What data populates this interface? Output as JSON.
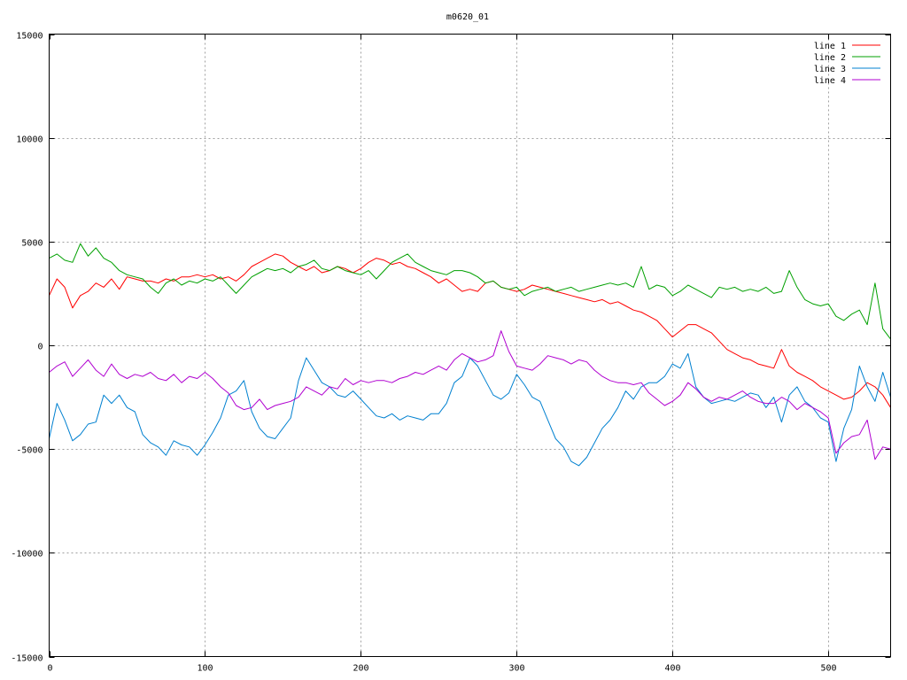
{
  "chart_data": {
    "type": "line",
    "title": "m0620_01",
    "xlabel": "",
    "ylabel": "",
    "xlim": [
      0,
      540
    ],
    "ylim": [
      -15000,
      15000
    ],
    "x_ticks": [
      "0",
      "100",
      "200",
      "300",
      "400",
      "500"
    ],
    "y_ticks": [
      "-15000",
      "-10000",
      "-5000",
      "0",
      "5000",
      "10000",
      "15000"
    ],
    "grid": true,
    "legend_position": "top-right",
    "series": [
      {
        "name": "line 1",
        "color": "#ff0000",
        "x": [
          0,
          5,
          10,
          15,
          20,
          25,
          30,
          35,
          40,
          45,
          50,
          55,
          60,
          65,
          70,
          75,
          80,
          85,
          90,
          95,
          100,
          105,
          110,
          115,
          120,
          125,
          130,
          135,
          140,
          145,
          150,
          155,
          160,
          165,
          170,
          175,
          180,
          185,
          190,
          195,
          200,
          205,
          210,
          215,
          220,
          225,
          230,
          235,
          240,
          245,
          250,
          255,
          260,
          265,
          270,
          275,
          280,
          285,
          290,
          295,
          300,
          305,
          310,
          315,
          320,
          325,
          330,
          335,
          340,
          345,
          350,
          355,
          360,
          365,
          370,
          375,
          380,
          385,
          390,
          395,
          400,
          405,
          410,
          415,
          420,
          425,
          430,
          435,
          440,
          445,
          450,
          455,
          460,
          465,
          470,
          475,
          480,
          485,
          490,
          495,
          500,
          505,
          510,
          515,
          520,
          525,
          530,
          535,
          540
        ],
        "y": [
          2400,
          3200,
          2800,
          1800,
          2400,
          2600,
          3000,
          2800,
          3200,
          2700,
          3300,
          3200,
          3100,
          3100,
          3000,
          3200,
          3100,
          3300,
          3300,
          3400,
          3300,
          3400,
          3200,
          3300,
          3100,
          3400,
          3800,
          4000,
          4200,
          4400,
          4300,
          4000,
          3800,
          3600,
          3800,
          3500,
          3600,
          3800,
          3700,
          3500,
          3700,
          4000,
          4200,
          4100,
          3900,
          4000,
          3800,
          3700,
          3500,
          3300,
          3000,
          3200,
          2900,
          2600,
          2700,
          2600,
          3000,
          3100,
          2800,
          2700,
          2600,
          2700,
          2900,
          2800,
          2700,
          2600,
          2500,
          2400,
          2300,
          2200,
          2100,
          2200,
          2000,
          2100,
          1900,
          1700,
          1600,
          1400,
          1200,
          800,
          400,
          700,
          1000,
          1000,
          800,
          600,
          200,
          -200,
          -400,
          -600,
          -700,
          -900,
          -1000,
          -1100,
          -200,
          -1000,
          -1300,
          -1500,
          -1700,
          -2000,
          -2200,
          -2400,
          -2600,
          -2500,
          -2200,
          -1800,
          -2000,
          -2400,
          -3000
        ]
      },
      {
        "name": "line 2",
        "color": "#00a000",
        "x": [
          0,
          5,
          10,
          15,
          20,
          25,
          30,
          35,
          40,
          45,
          50,
          55,
          60,
          65,
          70,
          75,
          80,
          85,
          90,
          95,
          100,
          105,
          110,
          115,
          120,
          125,
          130,
          135,
          140,
          145,
          150,
          155,
          160,
          165,
          170,
          175,
          180,
          185,
          190,
          195,
          200,
          205,
          210,
          215,
          220,
          225,
          230,
          235,
          240,
          245,
          250,
          255,
          260,
          265,
          270,
          275,
          280,
          285,
          290,
          295,
          300,
          305,
          310,
          315,
          320,
          325,
          330,
          335,
          340,
          345,
          350,
          355,
          360,
          365,
          370,
          375,
          380,
          385,
          390,
          395,
          400,
          405,
          410,
          415,
          420,
          425,
          430,
          435,
          440,
          445,
          450,
          455,
          460,
          465,
          470,
          475,
          480,
          485,
          490,
          495,
          500,
          505,
          510,
          515,
          520,
          525,
          530,
          535,
          540
        ],
        "y": [
          4200,
          4400,
          4100,
          4000,
          4900,
          4300,
          4700,
          4200,
          4000,
          3600,
          3400,
          3300,
          3200,
          2800,
          2500,
          3000,
          3200,
          2900,
          3100,
          3000,
          3200,
          3100,
          3300,
          2900,
          2500,
          2900,
          3300,
          3500,
          3700,
          3600,
          3700,
          3500,
          3800,
          3900,
          4100,
          3700,
          3600,
          3800,
          3600,
          3500,
          3400,
          3600,
          3200,
          3600,
          4000,
          4200,
          4400,
          4000,
          3800,
          3600,
          3500,
          3400,
          3600,
          3600,
          3500,
          3300,
          3000,
          3100,
          2800,
          2700,
          2800,
          2400,
          2600,
          2700,
          2800,
          2600,
          2700,
          2800,
          2600,
          2700,
          2800,
          2900,
          3000,
          2900,
          3000,
          2800,
          3800,
          2700,
          2900,
          2800,
          2400,
          2600,
          2900,
          2700,
          2500,
          2300,
          2800,
          2700,
          2800,
          2600,
          2700,
          2600,
          2800,
          2500,
          2600,
          3600,
          2800,
          2200,
          2000,
          1900,
          2000,
          1400,
          1200,
          1500,
          1700,
          1000,
          3000,
          800,
          300
        ]
      },
      {
        "name": "line 3",
        "color": "#0080d0",
        "x": [
          0,
          5,
          10,
          15,
          20,
          25,
          30,
          35,
          40,
          45,
          50,
          55,
          60,
          65,
          70,
          75,
          80,
          85,
          90,
          95,
          100,
          105,
          110,
          115,
          120,
          125,
          130,
          135,
          140,
          145,
          150,
          155,
          160,
          165,
          170,
          175,
          180,
          185,
          190,
          195,
          200,
          205,
          210,
          215,
          220,
          225,
          230,
          235,
          240,
          245,
          250,
          255,
          260,
          265,
          270,
          275,
          280,
          285,
          290,
          295,
          300,
          305,
          310,
          315,
          320,
          325,
          330,
          335,
          340,
          345,
          350,
          355,
          360,
          365,
          370,
          375,
          380,
          385,
          390,
          395,
          400,
          405,
          410,
          415,
          420,
          425,
          430,
          435,
          440,
          445,
          450,
          455,
          460,
          465,
          470,
          475,
          480,
          485,
          490,
          495,
          500,
          505,
          510,
          515,
          520,
          525,
          530,
          535,
          540
        ],
        "y": [
          -4500,
          -2800,
          -3600,
          -4600,
          -4300,
          -3800,
          -3700,
          -2400,
          -2800,
          -2400,
          -3000,
          -3200,
          -4300,
          -4700,
          -4900,
          -5300,
          -4600,
          -4800,
          -4900,
          -5300,
          -4800,
          -4200,
          -3500,
          -2400,
          -2200,
          -1700,
          -3200,
          -4000,
          -4400,
          -4500,
          -4000,
          -3500,
          -1700,
          -600,
          -1200,
          -1800,
          -2000,
          -2400,
          -2500,
          -2200,
          -2600,
          -3000,
          -3400,
          -3500,
          -3300,
          -3600,
          -3400,
          -3500,
          -3600,
          -3300,
          -3300,
          -2800,
          -1800,
          -1500,
          -600,
          -1000,
          -1700,
          -2400,
          -2600,
          -2300,
          -1400,
          -1900,
          -2500,
          -2700,
          -3600,
          -4500,
          -4900,
          -5600,
          -5800,
          -5400,
          -4700,
          -4000,
          -3600,
          -3000,
          -2200,
          -2600,
          -2000,
          -1800,
          -1800,
          -1500,
          -900,
          -1100,
          -400,
          -2000,
          -2500,
          -2800,
          -2700,
          -2600,
          -2700,
          -2500,
          -2300,
          -2400,
          -3000,
          -2500,
          -3700,
          -2400,
          -2000,
          -2700,
          -3000,
          -3500,
          -3700,
          -5600,
          -4000,
          -3100,
          -1000,
          -2000,
          -2700,
          -1300,
          -2500
        ]
      },
      {
        "name": "line 4",
        "color": "#b000d0",
        "x": [
          0,
          5,
          10,
          15,
          20,
          25,
          30,
          35,
          40,
          45,
          50,
          55,
          60,
          65,
          70,
          75,
          80,
          85,
          90,
          95,
          100,
          105,
          110,
          115,
          120,
          125,
          130,
          135,
          140,
          145,
          150,
          155,
          160,
          165,
          170,
          175,
          180,
          185,
          190,
          195,
          200,
          205,
          210,
          215,
          220,
          225,
          230,
          235,
          240,
          245,
          250,
          255,
          260,
          265,
          270,
          275,
          280,
          285,
          290,
          295,
          300,
          305,
          310,
          315,
          320,
          325,
          330,
          335,
          340,
          345,
          350,
          355,
          360,
          365,
          370,
          375,
          380,
          385,
          390,
          395,
          400,
          405,
          410,
          415,
          420,
          425,
          430,
          435,
          440,
          445,
          450,
          455,
          460,
          465,
          470,
          475,
          480,
          485,
          490,
          495,
          500,
          505,
          510,
          515,
          520,
          525,
          530,
          535,
          540
        ],
        "y": [
          -1300,
          -1000,
          -800,
          -1500,
          -1100,
          -700,
          -1200,
          -1500,
          -900,
          -1400,
          -1600,
          -1400,
          -1500,
          -1300,
          -1600,
          -1700,
          -1400,
          -1800,
          -1500,
          -1600,
          -1300,
          -1600,
          -2000,
          -2300,
          -2900,
          -3100,
          -3000,
          -2600,
          -3100,
          -2900,
          -2800,
          -2700,
          -2500,
          -2000,
          -2200,
          -2400,
          -2000,
          -2100,
          -1600,
          -1900,
          -1700,
          -1800,
          -1700,
          -1700,
          -1800,
          -1600,
          -1500,
          -1300,
          -1400,
          -1200,
          -1000,
          -1200,
          -700,
          -400,
          -600,
          -800,
          -700,
          -500,
          700,
          -300,
          -1000,
          -1100,
          -1200,
          -900,
          -500,
          -600,
          -700,
          -900,
          -700,
          -800,
          -1200,
          -1500,
          -1700,
          -1800,
          -1800,
          -1900,
          -1800,
          -2300,
          -2600,
          -2900,
          -2700,
          -2400,
          -1800,
          -2100,
          -2500,
          -2700,
          -2500,
          -2600,
          -2400,
          -2200,
          -2500,
          -2700,
          -2800,
          -2800,
          -2500,
          -2700,
          -3100,
          -2800,
          -3000,
          -3200,
          -3500,
          -5200,
          -4700,
          -4400,
          -4300,
          -3600,
          -5500,
          -4900,
          -5000
        ]
      }
    ]
  }
}
